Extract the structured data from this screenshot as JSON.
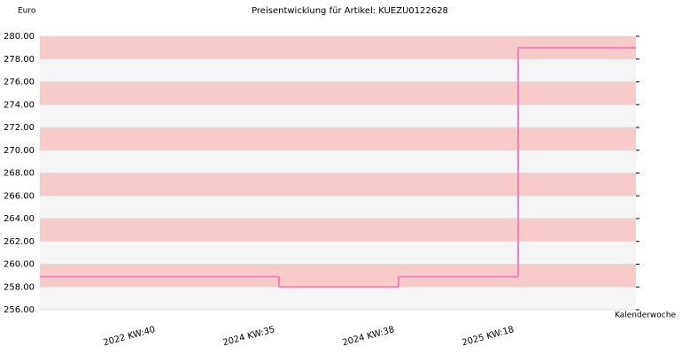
{
  "chart_data": {
    "type": "step",
    "title": "Preisentwicklung für Artikel: KUEZU0122628",
    "y_label": "Euro",
    "x_label": "Kalenderwoche",
    "categories": [
      "2022 KW:40",
      "2024 KW:35",
      "2024 KW:38",
      "2025 KW:18"
    ],
    "values": [
      258.9,
      258.0,
      258.9,
      279.0
    ],
    "color": "#f77fbe",
    "band_colors": [
      "#f8cbcb",
      "#f5f5f5"
    ],
    "ylim": [
      256,
      280
    ],
    "yticks": [
      {
        "value": 256,
        "label": "256.00"
      },
      {
        "value": 258,
        "label": "258.00"
      },
      {
        "value": 260,
        "label": "260.00"
      },
      {
        "value": 262,
        "label": "262.00"
      },
      {
        "value": 264,
        "label": "264.00"
      },
      {
        "value": 266,
        "label": "266.00"
      },
      {
        "value": 268,
        "label": "268.00"
      },
      {
        "value": 270,
        "label": "270.00"
      },
      {
        "value": 272,
        "label": "272.00"
      },
      {
        "value": 274,
        "label": "274.00"
      },
      {
        "value": 276,
        "label": "276.00"
      },
      {
        "value": 278,
        "label": "278.00"
      },
      {
        "value": 280,
        "label": "280.00"
      }
    ],
    "grid": true
  }
}
